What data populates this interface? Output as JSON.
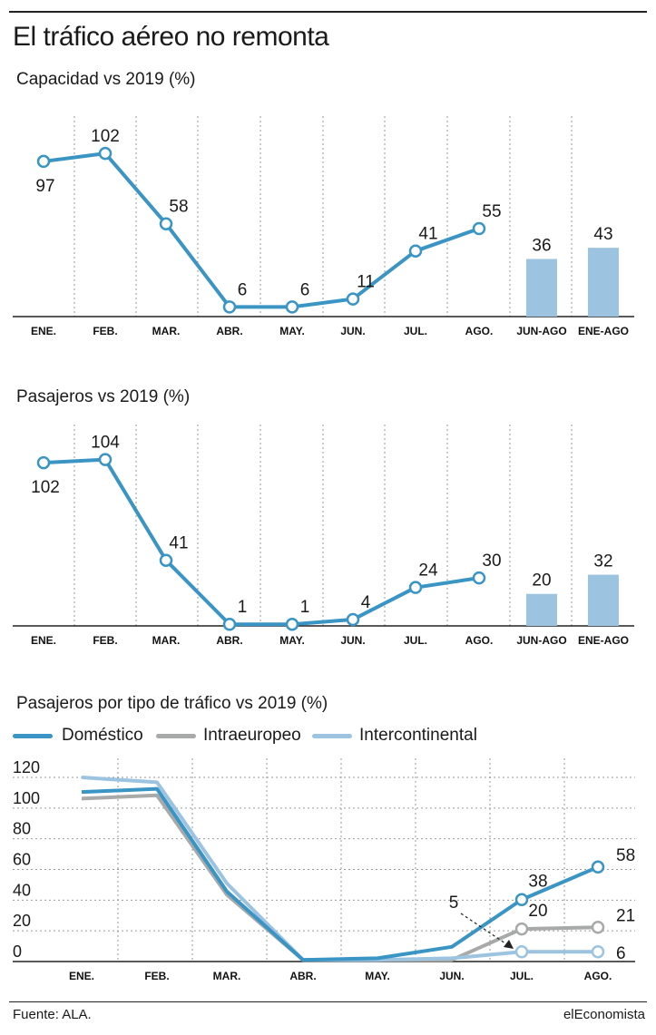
{
  "title": "El tráfico aéreo no remonta",
  "source": "Fuente: ALA.",
  "brand": "elEconomista",
  "chart_data": [
    {
      "type": "line",
      "title": "Capacidad vs 2019 (%)",
      "categories": [
        "ENE.",
        "FEB.",
        "MAR.",
        "ABR.",
        "MAY.",
        "JUN.",
        "JUL.",
        "AGO.",
        "JUN-AGO",
        "ENE-AGO"
      ],
      "line_values": [
        97,
        102,
        58,
        6,
        6,
        11,
        41,
        55
      ],
      "bar_values": [
        36,
        43
      ],
      "bar_categories": [
        "JUN-AGO",
        "ENE-AGO"
      ],
      "ylim": [
        0,
        110
      ],
      "grid": "vertical dotted"
    },
    {
      "type": "line",
      "title": "Pasajeros vs 2019 (%)",
      "categories": [
        "ENE.",
        "FEB.",
        "MAR.",
        "ABR.",
        "MAY.",
        "JUN.",
        "JUL.",
        "AGO.",
        "JUN-AGO",
        "ENE-AGO"
      ],
      "line_values": [
        102,
        104,
        41,
        1,
        1,
        4,
        24,
        30
      ],
      "bar_values": [
        20,
        32
      ],
      "bar_categories": [
        "JUN-AGO",
        "ENE-AGO"
      ],
      "ylim": [
        0,
        110
      ],
      "grid": "vertical dotted"
    },
    {
      "type": "line",
      "title": "Pasajeros por tipo de tráfico vs 2019 (%)",
      "categories": [
        "ENE.",
        "FEB.",
        "MAR.",
        "ABR.",
        "MAY.",
        "JUN.",
        "JUL.",
        "AGO."
      ],
      "y_ticks": [
        "120",
        "100",
        "80",
        "60",
        "40",
        "20",
        "0"
      ],
      "ylim": [
        0,
        120
      ],
      "legend": "top",
      "grid": "horizontal and vertical dotted",
      "series": [
        {
          "name": "Doméstico",
          "color": "#3a94c4",
          "values": [
            104,
            106,
            43,
            1,
            2,
            9,
            38,
            58
          ],
          "end_labels": [
            "38",
            "58"
          ]
        },
        {
          "name": "Intraeuropeo",
          "color": "#a8a9a9",
          "values": [
            100,
            102,
            41,
            1,
            1,
            1,
            20,
            21
          ],
          "end_labels": [
            "20",
            "21"
          ]
        },
        {
          "name": "Intercontinental",
          "color": "#9cc3df",
          "values": [
            113,
            110,
            48,
            1,
            1,
            2,
            6,
            6
          ],
          "end_labels": [
            "6"
          ]
        }
      ],
      "annotation": "5"
    }
  ],
  "colors": {
    "line": "#3a94c4",
    "bar": "#9cc3df",
    "marker_fill": "#ffffff",
    "grid": "#9a9a9a"
  }
}
